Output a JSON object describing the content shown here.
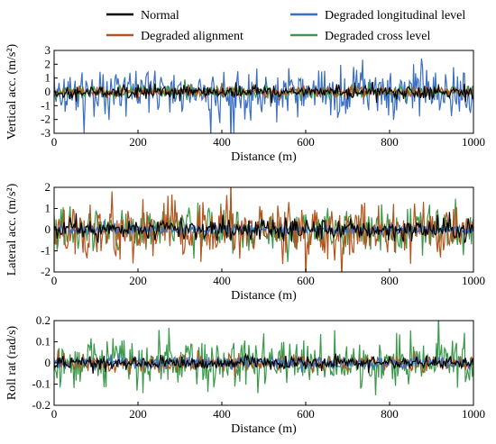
{
  "legend": {
    "items": [
      {
        "label": "Normal",
        "color": "#000000"
      },
      {
        "label": "Degraded alignment",
        "color": "#b5541e"
      },
      {
        "label": "Degraded longitudinal level",
        "color": "#3b6fc4"
      },
      {
        "label": "Degraded cross level",
        "color": "#3a9a4a"
      }
    ]
  },
  "chart_data": [
    {
      "type": "line",
      "xlabel": "Distance (m)",
      "ylabel": "Vertical acc.  (m/s²)",
      "xlim": [
        0,
        1000
      ],
      "ylim": [
        -3,
        3
      ],
      "xticks": [
        "0",
        "200",
        "400",
        "600",
        "800",
        "1000"
      ],
      "yticks": [
        "-3",
        "-2",
        "-1",
        "0",
        "1",
        "2",
        "3"
      ],
      "series": [
        {
          "name": "Degraded longitudinal level",
          "color": "#3b6fc4",
          "amplitude": 2.6,
          "seed": 11
        },
        {
          "name": "Degraded cross level",
          "color": "#3a9a4a",
          "amplitude": 0.6,
          "seed": 12
        },
        {
          "name": "Degraded alignment",
          "color": "#b5541e",
          "amplitude": 0.5,
          "seed": 13
        },
        {
          "name": "Normal",
          "color": "#000000",
          "amplitude": 0.7,
          "seed": 14
        }
      ]
    },
    {
      "type": "line",
      "xlabel": "Distance (m)",
      "ylabel": "Lateral acc.  (m/s²)",
      "xlim": [
        0,
        1000
      ],
      "ylim": [
        -2,
        2
      ],
      "xticks": [
        "0",
        "200",
        "400",
        "600",
        "800",
        "1000"
      ],
      "yticks": [
        "-2",
        "-1",
        "0",
        "1",
        "2"
      ],
      "series": [
        {
          "name": "Degraded cross level",
          "color": "#3a9a4a",
          "amplitude": 1.5,
          "seed": 21
        },
        {
          "name": "Degraded alignment",
          "color": "#b5541e",
          "amplitude": 1.8,
          "seed": 22
        },
        {
          "name": "Degraded longitudinal level",
          "color": "#3b6fc4",
          "amplitude": 0.3,
          "seed": 23
        },
        {
          "name": "Normal",
          "color": "#000000",
          "amplitude": 0.7,
          "seed": 24
        }
      ]
    },
    {
      "type": "line",
      "xlabel": "Distance (m)",
      "ylabel": "Roll rat  (rad/s)",
      "xlim": [
        0,
        1000
      ],
      "ylim": [
        -0.2,
        0.2
      ],
      "xticks": [
        "0",
        "200",
        "400",
        "600",
        "800",
        "1000"
      ],
      "yticks": [
        "-0.2",
        "-0.1",
        "0",
        "0.1",
        "0.2"
      ],
      "series": [
        {
          "name": "Degraded cross level",
          "color": "#3a9a4a",
          "amplitude": 0.16,
          "seed": 31
        },
        {
          "name": "Degraded alignment",
          "color": "#b5541e",
          "amplitude": 0.05,
          "seed": 32
        },
        {
          "name": "Degraded longitudinal level",
          "color": "#3b6fc4",
          "amplitude": 0.04,
          "seed": 33
        },
        {
          "name": "Normal",
          "color": "#000000",
          "amplitude": 0.04,
          "seed": 34
        }
      ]
    }
  ]
}
